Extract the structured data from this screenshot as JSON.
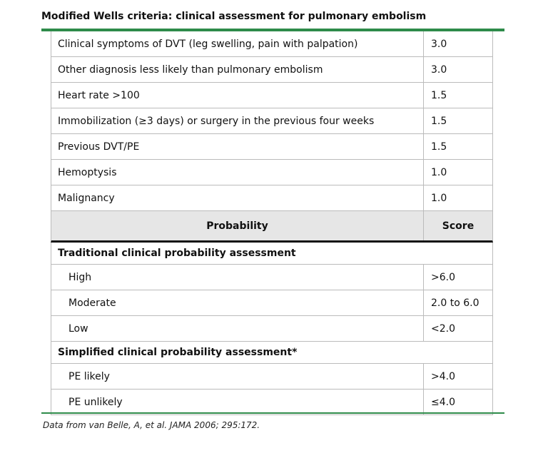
{
  "title": "Modified Wells criteria: clinical assessment for pulmonary embolism",
  "criteria": [
    {
      "label": "Clinical symptoms of DVT (leg swelling, pain with palpation)",
      "value": "3.0"
    },
    {
      "label": "Other diagnosis less likely than pulmonary embolism",
      "value": "3.0"
    },
    {
      "label": "Heart rate >100",
      "value": "1.5"
    },
    {
      "label": "Immobilization (≥3 days) or surgery in the previous four weeks",
      "value": "1.5"
    },
    {
      "label": "Previous DVT/PE",
      "value": "1.5"
    },
    {
      "label": "Hemoptysis",
      "value": "1.0"
    },
    {
      "label": "Malignancy",
      "value": "1.0"
    }
  ],
  "header": {
    "probability": "Probability",
    "score": "Score"
  },
  "traditional": {
    "heading": "Traditional clinical probability assessment",
    "rows": [
      {
        "label": "High",
        "value": ">6.0"
      },
      {
        "label": "Moderate",
        "value": "2.0 to 6.0"
      },
      {
        "label": "Low",
        "value": "<2.0"
      }
    ]
  },
  "simplified": {
    "heading": "Simplified clinical probability assessment*",
    "rows": [
      {
        "label": "PE likely",
        "value": ">4.0"
      },
      {
        "label": "PE unlikely",
        "value": "≤4.0"
      }
    ]
  },
  "footnote": "Data from van Belle, A, et al. JAMA 2006; 295:172.",
  "colors": {
    "rule": "#2e8b4a",
    "header_bg": "#e6e6e6"
  }
}
